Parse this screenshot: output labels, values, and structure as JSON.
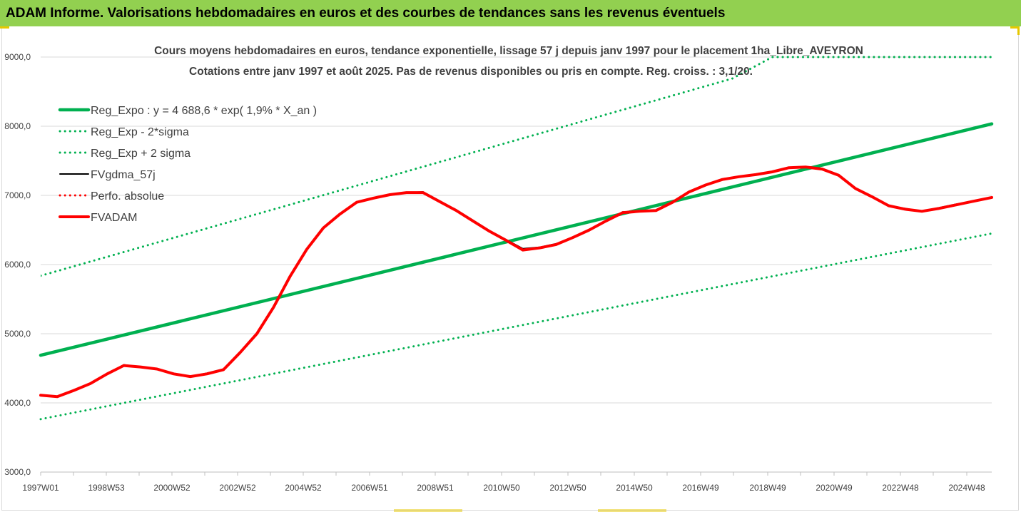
{
  "header": {
    "title": "ADAM Informe. Valorisations hebdomadaires en euros et des courbes de tendances sans les revenus éventuels"
  },
  "colors": {
    "title_bar": "#92d050",
    "reg_expo": "#00b050",
    "fvgdma": "#000000",
    "fvadam": "#ff0000",
    "perfo": "#ff0000"
  },
  "chart_data": {
    "type": "line",
    "title": "Cours moyens hebdomadaires en euros, tendance exponentielle, lissage 57 j depuis janv 1997  pour le placement 1ha_Libre_AVEYRON",
    "subtitle": "Cotations entre janv 1997 et août 2025.  Pas de revenus disponibles ou pris en compte. Reg. croiss. : 3,1/20.",
    "xlabel": "",
    "ylabel": "",
    "ylim": [
      3000,
      9000
    ],
    "xlim": [
      1997.0,
      2025.6
    ],
    "grid": "horizontal",
    "legend_position": "top-left",
    "y_ticks": [
      "3000,0",
      "4000,0",
      "5000,0",
      "6000,0",
      "7000,0",
      "8000,0",
      "9000,0"
    ],
    "x_ticks": [
      "1997W01",
      "1998W53",
      "2000W52",
      "2002W52",
      "2004W52",
      "2006W51",
      "2008W51",
      "2010W50",
      "2012W50",
      "2014W50",
      "2016W49",
      "2018W49",
      "2020W49",
      "2022W48",
      "2024W48"
    ],
    "series": [
      {
        "name": "Reg_Expo : y = 4 688,6 * exp( 1,9% *  X_an )",
        "style": "solid-thick",
        "color": "#00b050",
        "x": [
          1997.0,
          2025.6
        ],
        "y": [
          4689,
          8034
        ]
      },
      {
        "name": "Reg_Exp - 2*sigma",
        "style": "dotted",
        "color": "#00b050",
        "x": [
          1997.0,
          2025.6
        ],
        "y": [
          3765,
          6450
        ]
      },
      {
        "name": "Reg_Exp + 2 sigma",
        "style": "dotted",
        "color": "#00b050",
        "x": [
          1997.0,
          2017.8,
          2019.0,
          2025.6
        ],
        "y": [
          5838,
          8690,
          9000,
          9000
        ]
      },
      {
        "name": "FVgdma_57j",
        "style": "solid",
        "color": "#000000",
        "x": [
          1997.0,
          1997.5,
          1998.0,
          1998.5,
          1999.0,
          1999.5,
          2000.0,
          2000.5,
          2001.0,
          2001.5,
          2002.0,
          2002.5,
          2003.0,
          2003.5,
          2004.0,
          2004.5,
          2005.0,
          2005.5,
          2006.0,
          2006.5,
          2007.0,
          2007.5,
          2008.0,
          2008.5,
          2009.0,
          2009.5,
          2010.0,
          2010.5,
          2011.0,
          2011.5,
          2012.0,
          2012.5,
          2013.0,
          2013.5,
          2014.0,
          2014.5,
          2015.0,
          2015.5,
          2016.0,
          2016.5,
          2017.0,
          2017.5,
          2018.0,
          2018.5,
          2019.0,
          2019.5,
          2020.0,
          2020.5,
          2021.0,
          2021.5,
          2022.0,
          2022.5,
          2023.0,
          2023.5,
          2024.0,
          2024.5,
          2025.0,
          2025.6
        ],
        "y": [
          4110,
          4090,
          4180,
          4280,
          4420,
          4550,
          4520,
          4490,
          4420,
          4380,
          4430,
          4490,
          4730,
          5000,
          5380,
          5830,
          6220,
          6530,
          6730,
          6900,
          6960,
          7010,
          7040,
          7050,
          6920,
          6790,
          6640,
          6490,
          6360,
          6230,
          6250,
          6300,
          6390,
          6510,
          6630,
          6760,
          6770,
          6790,
          6910,
          7060,
          7150,
          7230,
          7270,
          7300,
          7340,
          7400,
          7410,
          7390,
          7300,
          7100,
          6980,
          6850,
          6810,
          6770,
          6820,
          6870,
          6910,
          6970
        ]
      },
      {
        "name": "Perfo. absolue",
        "style": "dotted",
        "color": "#ff0000",
        "x": [],
        "y": []
      },
      {
        "name": "FVADAM",
        "style": "solid-thick",
        "color": "#ff0000",
        "x": [
          1997.0,
          1997.5,
          1998.0,
          1998.5,
          1999.0,
          1999.5,
          2000.0,
          2000.5,
          2001.0,
          2001.5,
          2002.0,
          2002.5,
          2003.0,
          2003.5,
          2004.0,
          2004.5,
          2005.0,
          2005.5,
          2006.0,
          2006.5,
          2007.0,
          2007.5,
          2008.0,
          2008.5,
          2009.0,
          2009.5,
          2010.0,
          2010.5,
          2011.0,
          2011.5,
          2012.0,
          2012.5,
          2013.0,
          2013.5,
          2014.0,
          2014.5,
          2015.0,
          2015.5,
          2016.0,
          2016.5,
          2017.0,
          2017.5,
          2018.0,
          2018.5,
          2019.0,
          2019.5,
          2020.0,
          2020.5,
          2021.0,
          2021.5,
          2022.0,
          2022.5,
          2023.0,
          2023.5,
          2024.0,
          2024.5,
          2025.0,
          2025.6
        ],
        "y": [
          4110,
          4090,
          4180,
          4280,
          4420,
          4540,
          4520,
          4490,
          4420,
          4380,
          4420,
          4480,
          4730,
          5000,
          5380,
          5830,
          6220,
          6530,
          6730,
          6900,
          6960,
          7010,
          7040,
          7040,
          6910,
          6780,
          6630,
          6480,
          6350,
          6210,
          6240,
          6290,
          6390,
          6500,
          6630,
          6750,
          6770,
          6780,
          6900,
          7050,
          7150,
          7230,
          7270,
          7300,
          7340,
          7400,
          7410,
          7380,
          7290,
          7100,
          6980,
          6850,
          6800,
          6770,
          6810,
          6860,
          6910,
          6970
        ]
      }
    ]
  }
}
